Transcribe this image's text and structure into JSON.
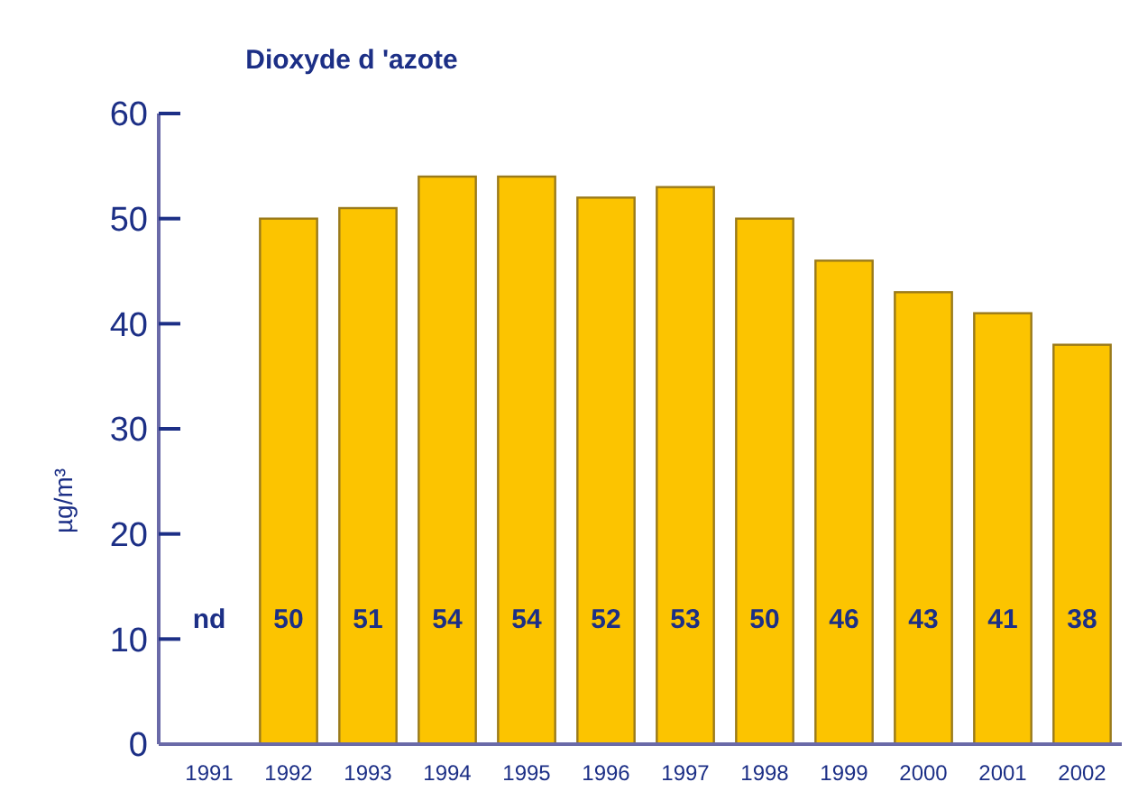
{
  "chart_data": {
    "type": "bar",
    "title": "Dioxyde d 'azote",
    "ylabel": "µg/m³",
    "categories": [
      "1991",
      "1992",
      "1993",
      "1994",
      "1995",
      "1996",
      "1997",
      "1998",
      "1999",
      "2000",
      "2001",
      "2002"
    ],
    "values": [
      null,
      50,
      51,
      54,
      54,
      52,
      53,
      50,
      46,
      43,
      41,
      38
    ],
    "value_labels": [
      "nd",
      "50",
      "51",
      "54",
      "54",
      "52",
      "53",
      "50",
      "46",
      "43",
      "41",
      "38"
    ],
    "color": "#fcc400",
    "ylim": [
      0,
      60
    ],
    "yticks": [
      0,
      10,
      20,
      30,
      40,
      50,
      60
    ],
    "grid": false
  }
}
